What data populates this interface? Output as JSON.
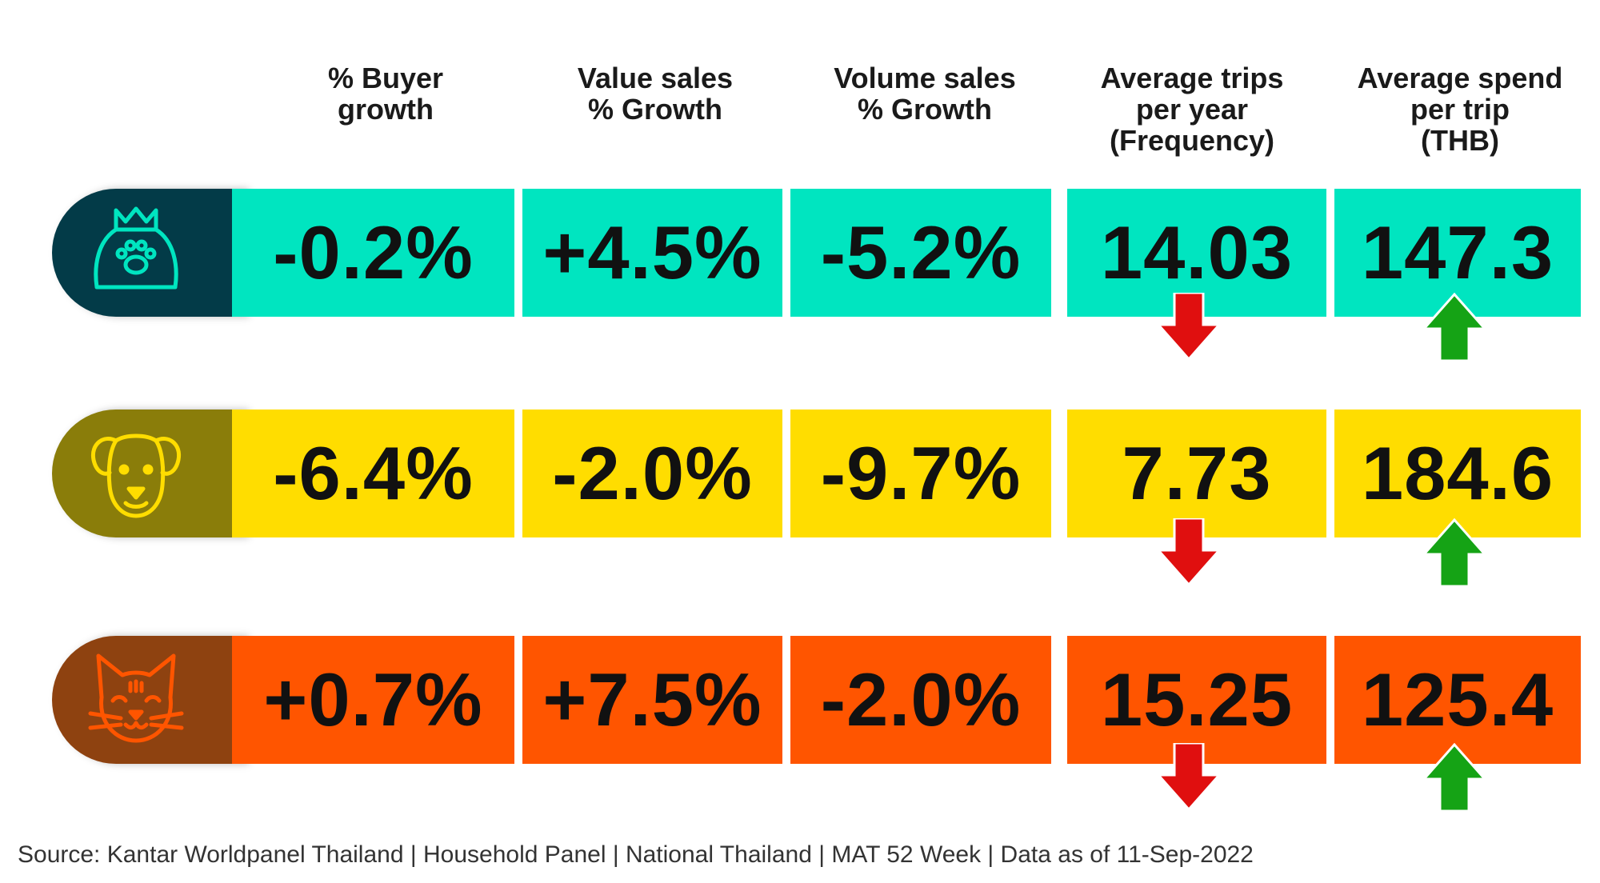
{
  "chart_data": {
    "type": "table",
    "columns": [
      "% Buyer\ngrowth",
      "Value sales\n% Growth",
      "Volume sales\n% Growth",
      "Average trips\nper year\n(Frequency)",
      "Average spend\nper trip\n(THB)"
    ],
    "rows": [
      {
        "icon": "pet-food-bag-icon",
        "colors": {
          "cell": "#00E5C0",
          "tab": "#033B48",
          "icon": "#00E5C0"
        },
        "values": [
          "-0.2%",
          "+4.5%",
          "-5.2%",
          "14.03",
          "147.3"
        ],
        "trends": {
          "frequency": "down",
          "spend_per_trip": "up"
        }
      },
      {
        "icon": "dog-icon",
        "colors": {
          "cell": "#FFDD00",
          "tab": "#8A7D0A",
          "icon": "#FFDD00"
        },
        "values": [
          "-6.4%",
          "-2.0%",
          "-9.7%",
          "7.73",
          "184.6"
        ],
        "trends": {
          "frequency": "down",
          "spend_per_trip": "up"
        }
      },
      {
        "icon": "cat-icon",
        "colors": {
          "cell": "#FF5500",
          "tab": "#8E4210",
          "icon": "#FF5500"
        },
        "values": [
          "+0.7%",
          "+7.5%",
          "-2.0%",
          "15.25",
          "125.4"
        ],
        "trends": {
          "frequency": "down",
          "spend_per_trip": "up"
        }
      }
    ],
    "arrow_colors": {
      "up": "#15A315",
      "down": "#E00F0F"
    }
  },
  "source": "Source: Kantar Worldpanel Thailand | Household Panel | National Thailand | MAT 52 Week | Data as of 11-Sep-2022"
}
